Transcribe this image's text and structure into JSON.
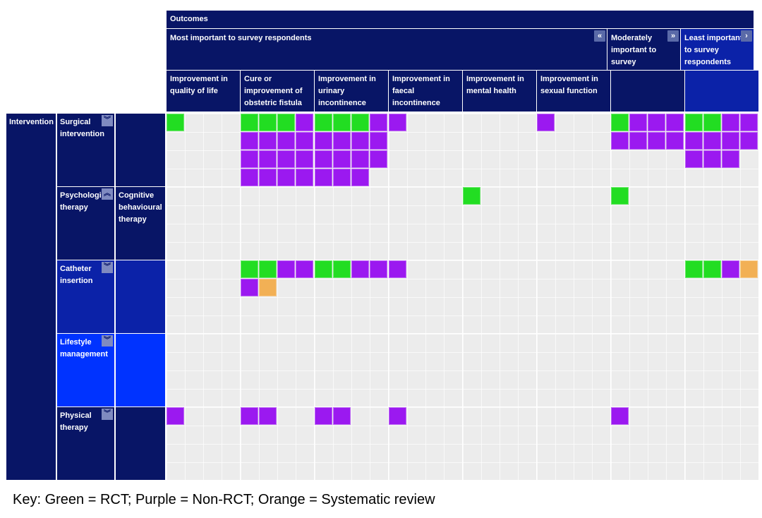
{
  "chart_data": {
    "type": "heatmap",
    "header": {
      "outcomes_label": "Outcomes",
      "groups": [
        {
          "label": "Most important to survey respondents",
          "collapse_glyph": "«"
        },
        {
          "label": "Moderately important to survey respondents",
          "collapse_glyph": "»"
        },
        {
          "label": "Least important to survey respondents",
          "collapse_glyph": "›"
        }
      ]
    },
    "columns": [
      "Improvement in quality of life",
      "Cure or improvement of obstetric fistula",
      "Improvement in urinary incontinence",
      "Improvement in faecal incontinence",
      "Improvement in mental health",
      "Improvement in sexual function",
      "",
      ""
    ],
    "row_header": "Intervention",
    "rows": [
      {
        "label": "Surgical intervention",
        "sublabel": "",
        "color": "#081566"
      },
      {
        "label": "Psychological therapy",
        "sublabel": "Cognitive behavioural therapy",
        "color": "#081566"
      },
      {
        "label": "Catheter insertion",
        "sublabel": "",
        "color": "#0b22a8"
      },
      {
        "label": "Lifestyle management",
        "sublabel": "",
        "color": "#0033ff"
      },
      {
        "label": "Physical therapy",
        "sublabel": "",
        "color": "#081566"
      }
    ],
    "legend": [
      {
        "code": "R",
        "name": "RCT",
        "color": "#22dd22"
      },
      {
        "code": "N",
        "name": "Non-RCT",
        "color": "#9b19f0"
      },
      {
        "code": "S",
        "name": "Systematic review",
        "color": "#f2b055"
      }
    ],
    "cells": [
      [
        "R",
        "RRRNNNNNNNNNNNNN",
        "RRRNNNNNNNNNNNN",
        "N",
        "",
        "N",
        "RNNNNNNN",
        "RRNNNNNNNNN"
      ],
      [
        "",
        "",
        "",
        "",
        "R",
        "",
        "R",
        ""
      ],
      [
        "",
        "RRNNNS",
        "RRNN",
        "N",
        "",
        "",
        "",
        "RRNS"
      ],
      [
        "",
        "",
        "",
        "",
        "",
        "",
        "",
        ""
      ],
      [
        "N",
        "NN",
        "NN",
        "N",
        "",
        "",
        "N",
        ""
      ]
    ]
  },
  "key_text": "Key: Green = RCT; Purple = Non-RCT; Orange = Systematic review"
}
